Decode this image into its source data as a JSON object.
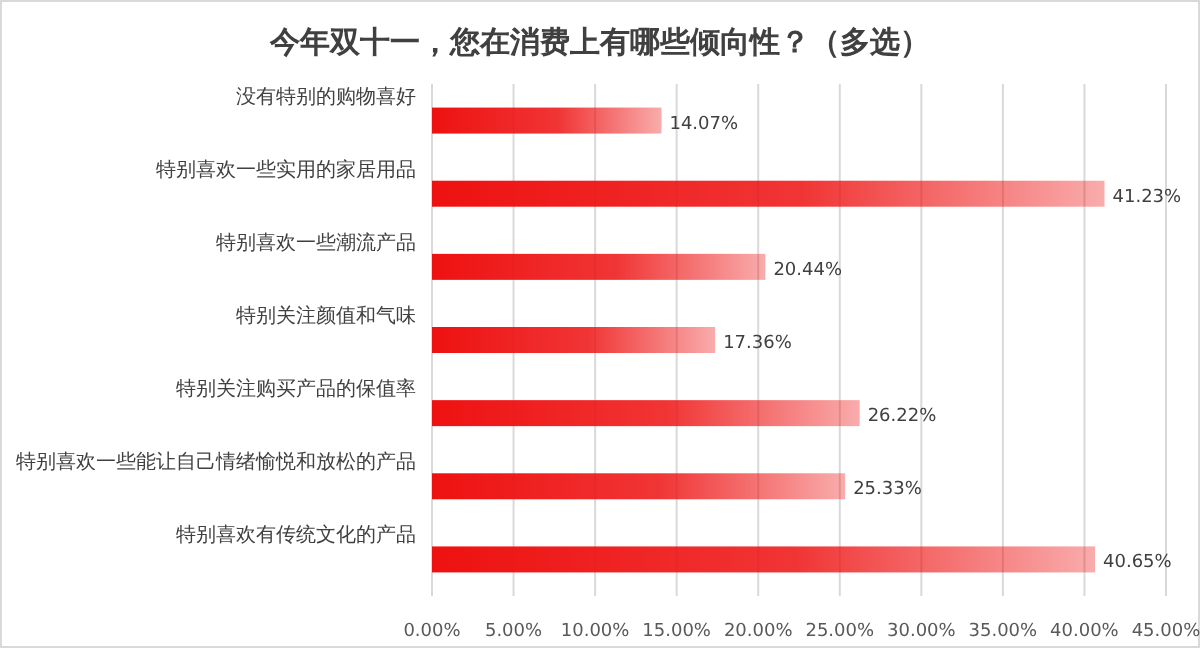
{
  "chart_data": {
    "type": "bar",
    "orientation": "horizontal",
    "title": "今年双十一，您在消费上有哪些倾向性？（多选）",
    "categories": [
      "没有特别的购物喜好",
      "特别喜欢一些实用的家居用品",
      "特别喜欢一些潮流产品",
      "特别关注颜值和气味",
      "特别关注购买产品的保值率",
      "特别喜欢一些能让自己情绪愉悦和放松的产品",
      "特别喜欢有传统文化的产品"
    ],
    "values": [
      14.07,
      41.23,
      20.44,
      17.36,
      26.22,
      25.33,
      40.65
    ],
    "value_labels": [
      "14.07%",
      "41.23%",
      "20.44%",
      "17.36%",
      "26.22%",
      "25.33%",
      "40.65%"
    ],
    "color": "#ee1111",
    "xlim": [
      0,
      45
    ],
    "xticks": [
      {
        "value": 0,
        "label": "0.00%"
      },
      {
        "value": 5,
        "label": "5.00%"
      },
      {
        "value": 10,
        "label": "10.00%"
      },
      {
        "value": 15,
        "label": "15.00%"
      },
      {
        "value": 20,
        "label": "20.00%"
      },
      {
        "value": 25,
        "label": "25.00%"
      },
      {
        "value": 30,
        "label": "30.00%"
      },
      {
        "value": 35,
        "label": "35.00%"
      },
      {
        "value": 40,
        "label": "40.00%"
      },
      {
        "value": 45,
        "label": "45.00%"
      }
    ],
    "grid": "x"
  }
}
